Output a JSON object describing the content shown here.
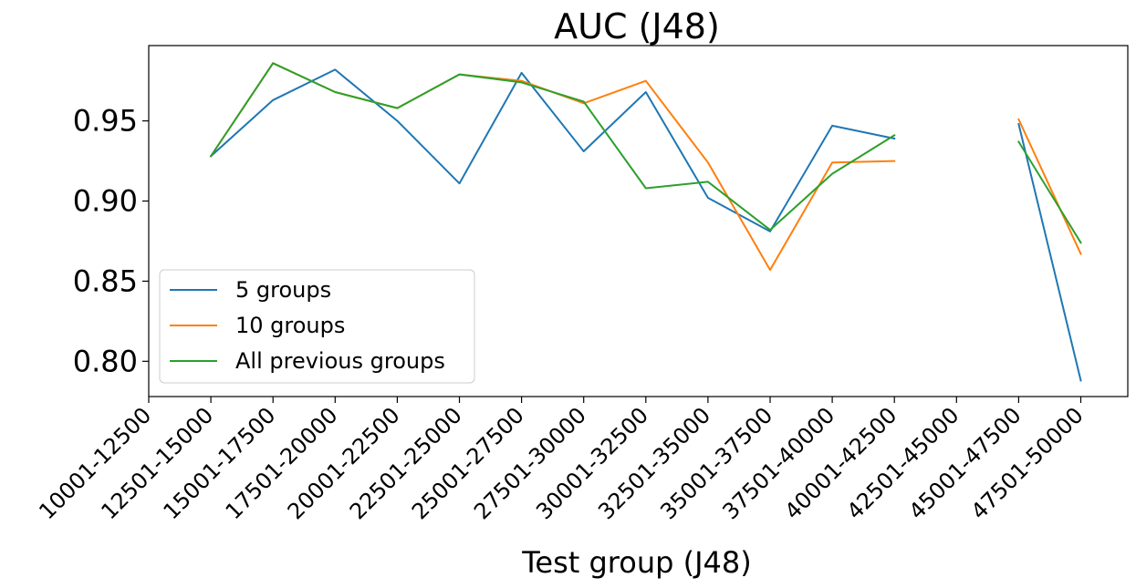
{
  "chart_data": {
    "type": "line",
    "title": "AUC (J48)",
    "xlabel": "Test group (J48)",
    "ylabel": "",
    "categories": [
      "10001-12500",
      "12501-15000",
      "15001-17500",
      "17501-20000",
      "20001-22500",
      "22501-25000",
      "25001-27500",
      "27501-30000",
      "30001-32500",
      "32501-35000",
      "35001-37500",
      "37501-40000",
      "40001-42500",
      "42501-45000",
      "45001-47500",
      "47501-50000"
    ],
    "ylim": [
      0.778,
      0.997
    ],
    "yticks": [
      "0.80",
      "0.85",
      "0.90",
      "0.95"
    ],
    "grid": false,
    "legend_position": "lower-left",
    "series": [
      {
        "name": "5 groups",
        "color": "#1f77b4",
        "values": [
          null,
          0.928,
          0.963,
          0.982,
          0.95,
          0.911,
          0.98,
          0.931,
          0.968,
          0.902,
          0.881,
          0.947,
          0.939,
          null,
          0.948,
          0.788
        ]
      },
      {
        "name": "10 groups",
        "color": "#ff7f0e",
        "values": [
          null,
          0.928,
          0.986,
          0.968,
          0.958,
          0.979,
          0.975,
          0.961,
          0.975,
          0.924,
          0.857,
          0.924,
          0.925,
          null,
          0.951,
          0.867
        ]
      },
      {
        "name": "All previous groups",
        "color": "#2ca02c",
        "values": [
          null,
          0.928,
          0.986,
          0.968,
          0.958,
          0.979,
          0.974,
          0.962,
          0.908,
          0.912,
          0.882,
          0.917,
          0.941,
          null,
          0.937,
          0.874
        ]
      }
    ]
  }
}
